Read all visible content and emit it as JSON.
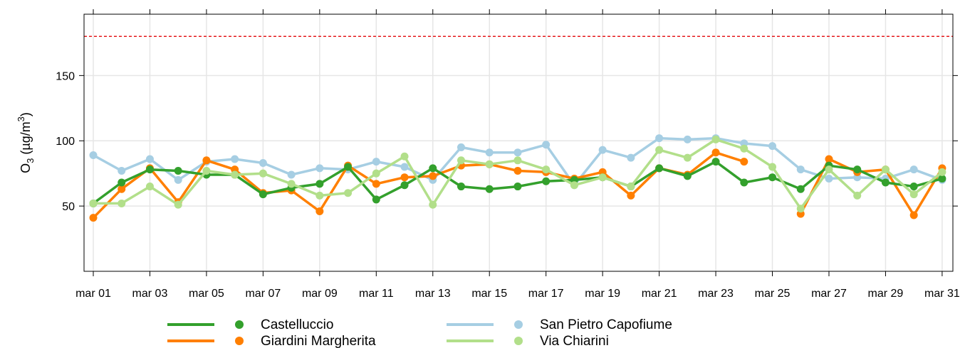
{
  "chart_data": {
    "type": "line",
    "ylabel_main": "O",
    "ylabel_sub": "3",
    "ylabel_unit_open": " (µg/m",
    "ylabel_unit_sup": "3",
    "ylabel_unit_close": ")",
    "xlabel": "",
    "ylim": [
      0,
      197
    ],
    "yticks": [
      50,
      100,
      150
    ],
    "x": [
      "mar 01",
      "mar 02",
      "mar 03",
      "mar 04",
      "mar 05",
      "mar 06",
      "mar 07",
      "mar 08",
      "mar 09",
      "mar 10",
      "mar 11",
      "mar 12",
      "mar 13",
      "mar 14",
      "mar 15",
      "mar 16",
      "mar 17",
      "mar 18",
      "mar 19",
      "mar 20",
      "mar 21",
      "mar 22",
      "mar 23",
      "mar 24",
      "mar 25",
      "mar 26",
      "mar 27",
      "mar 28",
      "mar 29",
      "mar 30",
      "mar 31"
    ],
    "xtick_labels": [
      "mar 01",
      "mar 03",
      "mar 05",
      "mar 07",
      "mar 09",
      "mar 11",
      "mar 13",
      "mar 15",
      "mar 17",
      "mar 19",
      "mar 21",
      "mar 23",
      "mar 25",
      "mar 27",
      "mar 29",
      "mar 31"
    ],
    "threshold": {
      "value": 180,
      "color": "#e41a1c",
      "style": "dashed"
    },
    "grid": true,
    "legend_position": "bottom",
    "series": [
      {
        "name": "San Pietro Capofiume",
        "color": "#a6cee3",
        "values": [
          89,
          77,
          86,
          70,
          84,
          86,
          83,
          74,
          79,
          78,
          84,
          80,
          70,
          95,
          91,
          91,
          97,
          66,
          93,
          87,
          102,
          101,
          102,
          98,
          96,
          78,
          71,
          72,
          71,
          78,
          70
        ]
      },
      {
        "name": "Giardini Margherita",
        "color": "#ff7f00",
        "values": [
          41,
          63,
          79,
          53,
          85,
          78,
          60,
          62,
          46,
          81,
          67,
          72,
          73,
          81,
          82,
          77,
          76,
          71,
          76,
          58,
          79,
          74,
          91,
          84,
          null,
          44,
          86,
          76,
          78,
          43,
          79
        ]
      },
      {
        "name": "Castelluccio",
        "color": "#33a02c",
        "values": [
          52,
          68,
          78,
          77,
          74,
          74,
          59,
          64,
          67,
          80,
          55,
          66,
          79,
          65,
          63,
          65,
          69,
          70,
          72,
          65,
          79,
          73,
          84,
          68,
          72,
          63,
          81,
          78,
          68,
          65,
          71
        ]
      },
      {
        "name": "Via Chiarini",
        "color": "#b2df8a",
        "values": [
          52,
          52,
          65,
          51,
          77,
          74,
          75,
          67,
          58,
          60,
          75,
          88,
          51,
          85,
          82,
          85,
          78,
          66,
          72,
          65,
          93,
          87,
          101,
          94,
          80,
          48,
          78,
          58,
          78,
          59,
          76
        ]
      }
    ],
    "legend": [
      {
        "name": "Castelluccio",
        "color": "#33a02c"
      },
      {
        "name": "Giardini Margherita",
        "color": "#ff7f00"
      },
      {
        "name": "San Pietro Capofiume",
        "color": "#a6cee3"
      },
      {
        "name": "Via Chiarini",
        "color": "#b2df8a"
      }
    ]
  }
}
